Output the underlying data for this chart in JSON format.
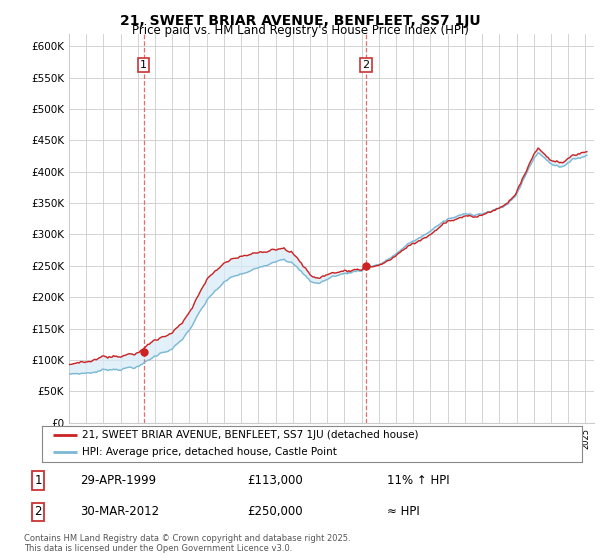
{
  "title": "21, SWEET BRIAR AVENUE, BENFLEET, SS7 1JU",
  "subtitle": "Price paid vs. HM Land Registry's House Price Index (HPI)",
  "ylim": [
    0,
    620000
  ],
  "yticks": [
    0,
    50000,
    100000,
    150000,
    200000,
    250000,
    300000,
    350000,
    400000,
    450000,
    500000,
    550000,
    600000
  ],
  "ytick_labels": [
    "£0",
    "£50K",
    "£100K",
    "£150K",
    "£200K",
    "£250K",
    "£300K",
    "£350K",
    "£400K",
    "£450K",
    "£500K",
    "£550K",
    "£600K"
  ],
  "hpi_color": "#7bb8d4",
  "price_color": "#cc2222",
  "fill_color": "#d6eaf8",
  "marker_color": "#cc2222",
  "dashed_line_color": "#e06060",
  "background_color": "#ffffff",
  "grid_color": "#cccccc",
  "legend_label_red": "21, SWEET BRIAR AVENUE, BENFLEET, SS7 1JU (detached house)",
  "legend_label_blue": "HPI: Average price, detached house, Castle Point",
  "annotation1_label": "1",
  "annotation1_date": "29-APR-1999",
  "annotation1_price": "£113,000",
  "annotation1_hpi": "11% ↑ HPI",
  "annotation2_label": "2",
  "annotation2_date": "30-MAR-2012",
  "annotation2_price": "£250,000",
  "annotation2_hpi": "≈ HPI",
  "footer": "Contains HM Land Registry data © Crown copyright and database right 2025.\nThis data is licensed under the Open Government Licence v3.0.",
  "sale1_year": 1999.33,
  "sale1_value": 113000,
  "sale2_year": 2012.25,
  "sale2_value": 250000
}
